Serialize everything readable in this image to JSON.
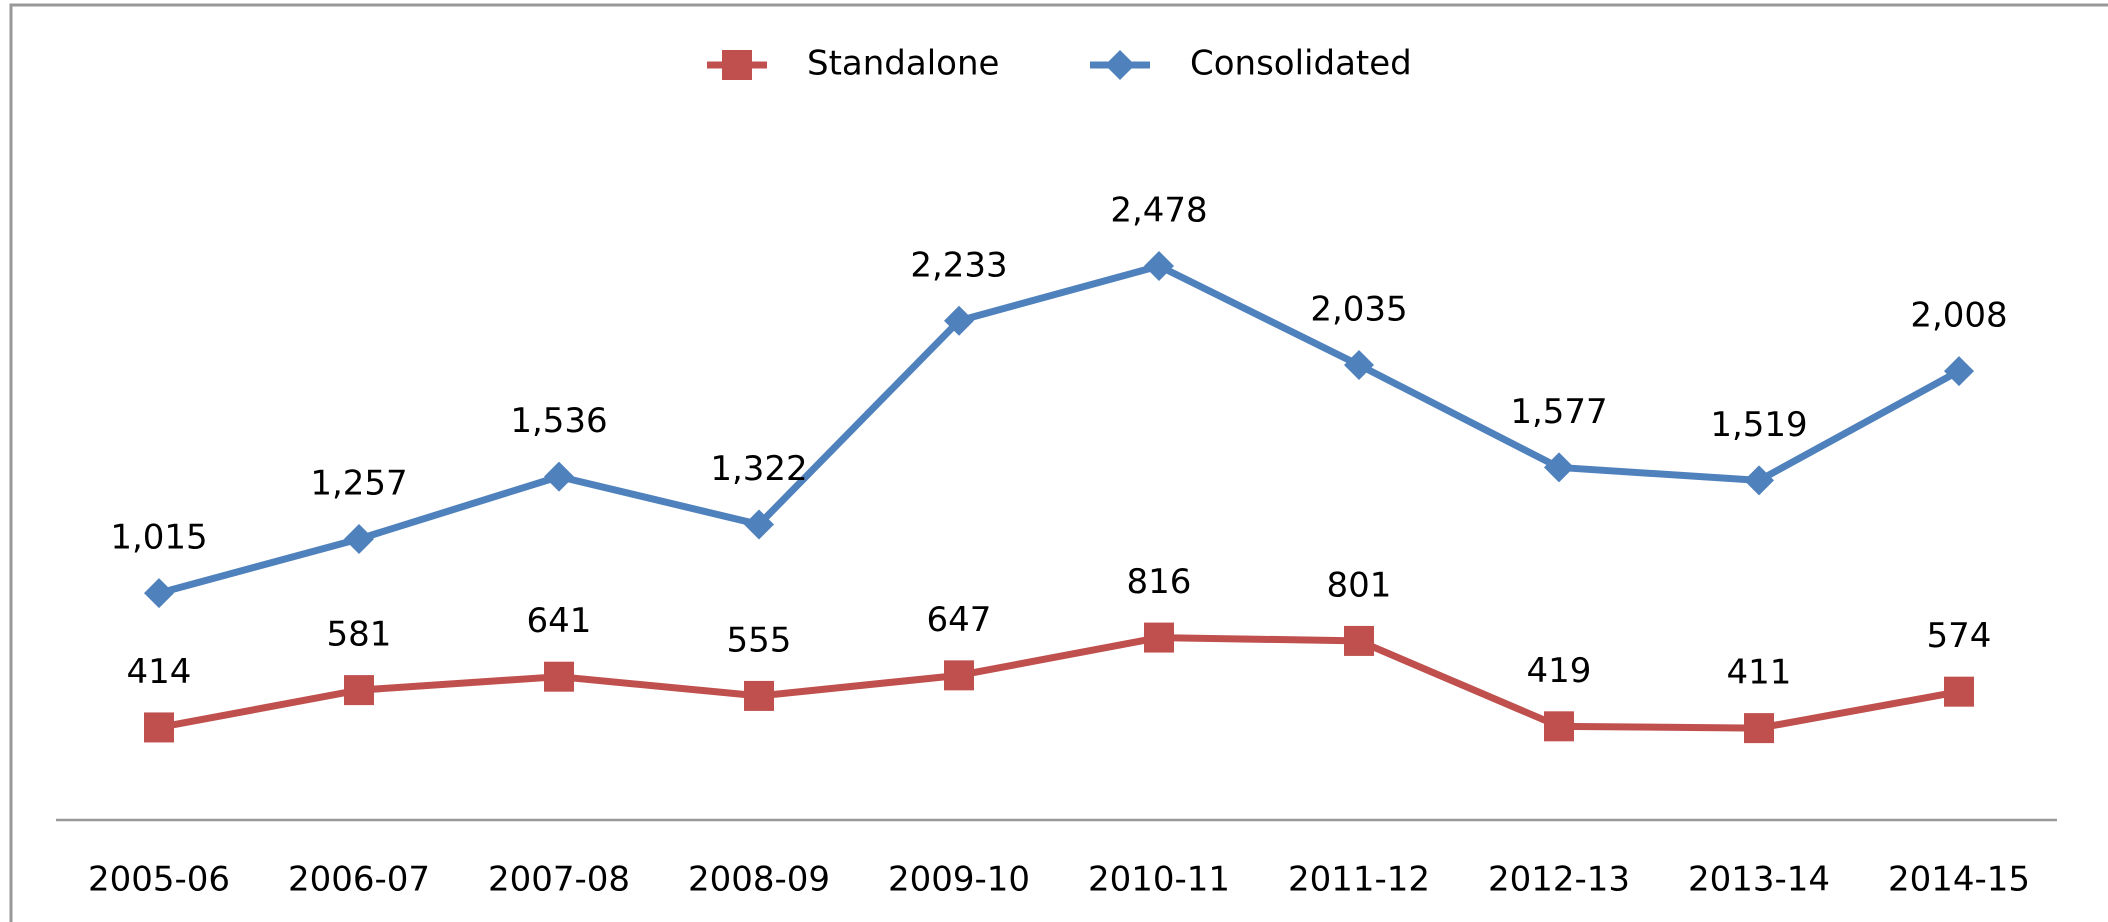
{
  "chart_data": {
    "type": "line",
    "categories": [
      "2005-06",
      "2006-07",
      "2007-08",
      "2008-09",
      "2009-10",
      "2010-11",
      "2011-12",
      "2012-13",
      "2013-14",
      "2014-15"
    ],
    "series": [
      {
        "name": "Standalone",
        "color": "#c0504d",
        "marker": "square",
        "values": [
          414,
          581,
          641,
          555,
          647,
          816,
          801,
          419,
          411,
          574
        ]
      },
      {
        "name": "Consolidated",
        "color": "#4f81bd",
        "marker": "diamond",
        "values": [
          1015,
          1257,
          1536,
          1322,
          2233,
          2478,
          2035,
          1577,
          1519,
          2008
        ],
        "value_labels": [
          "1,015",
          "1,257",
          "1,536",
          "1,322",
          "2,233",
          "2,478",
          "2,035",
          "1,577",
          "1,519",
          "2,008"
        ]
      }
    ],
    "legend": "top"
  }
}
